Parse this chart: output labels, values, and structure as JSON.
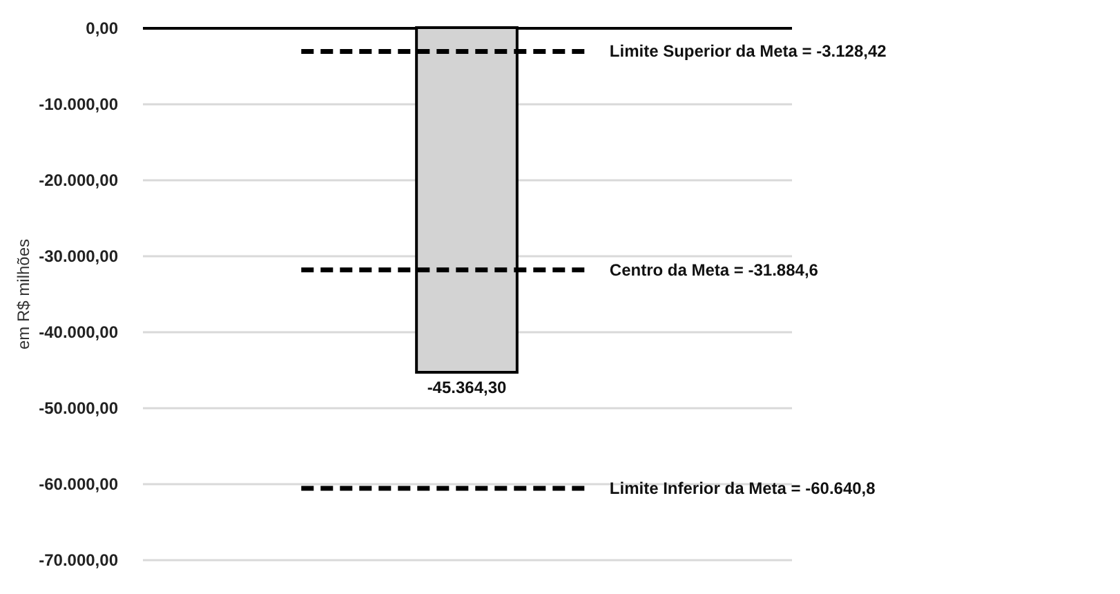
{
  "chart_data": {
    "type": "bar",
    "ylabel": "em R$ milhões",
    "categories": [
      null
    ],
    "series": [
      {
        "color": "#d3d3d3",
        "values": [
          -45364.3
        ]
      }
    ],
    "value_labels": [
      "-45.364,30"
    ],
    "ylim": [
      -70000,
      0
    ],
    "yticks": [
      {
        "value": 0,
        "label": "0,00"
      },
      {
        "value": -10000,
        "label": "-10.000,00"
      },
      {
        "value": -20000,
        "label": "-20.000,00"
      },
      {
        "value": -30000,
        "label": "-30.000,00"
      },
      {
        "value": -40000,
        "label": "-40.000,00"
      },
      {
        "value": -50000,
        "label": "-50.000,00"
      },
      {
        "value": -60000,
        "label": "-60.000,00"
      },
      {
        "value": -70000,
        "label": "-70.000,00"
      }
    ],
    "grid": "y",
    "tick_labels": "y",
    "ref_lines": [
      {
        "axis": "y",
        "value": -3128.42,
        "label": "Limite Superior da Meta = -3.128,42",
        "color": "#000000",
        "line_style": "dashed"
      },
      {
        "axis": "y",
        "value": -31884.6,
        "label": "Centro da Meta = -31.884,6",
        "color": "#000000",
        "line_style": "dashed"
      },
      {
        "axis": "y",
        "value": -60640.8,
        "label": "Limite Inferior da Meta = -60.640,8",
        "color": "#000000",
        "line_style": "dashed"
      }
    ]
  }
}
